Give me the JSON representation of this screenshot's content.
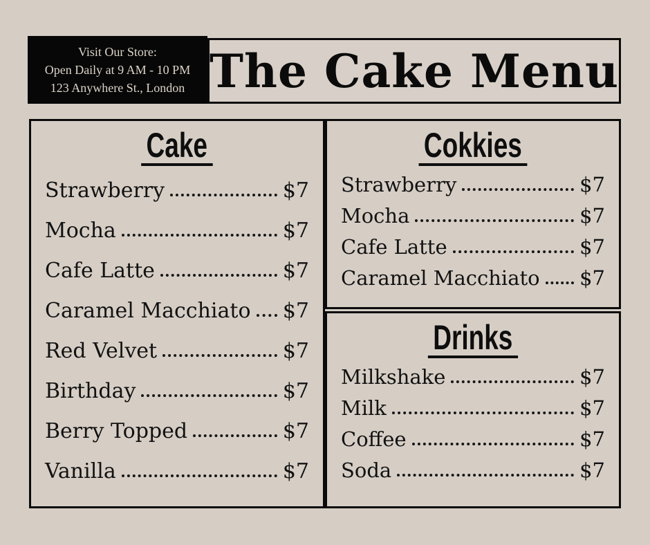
{
  "page": {
    "background": "#d6cec5",
    "ink": "#0b0b0b",
    "store_box_bg": "#070707",
    "store_text_color": "#ddd5c9"
  },
  "header": {
    "store_info": {
      "line1": "Visit Our Store:",
      "line2": "Open Daily at 9 AM - 10 PM",
      "line3": "123 Anywhere St., London"
    },
    "title": "The Cake Menu"
  },
  "sections": [
    {
      "title": "Cake",
      "items": [
        {
          "name": "Strawberry",
          "price": "$7"
        },
        {
          "name": "Mocha",
          "price": "$7"
        },
        {
          "name": "Cafe Latte",
          "price": "$7"
        },
        {
          "name": "Caramel Macchiato",
          "price": "$7"
        },
        {
          "name": "Red Velvet",
          "price": "$7"
        },
        {
          "name": "Birthday",
          "price": "$7"
        },
        {
          "name": "Berry Topped",
          "price": "$7"
        },
        {
          "name": "Vanilla",
          "price": "$7"
        }
      ]
    },
    {
      "title": "Cokkies",
      "items": [
        {
          "name": "Strawberry",
          "price": "$7"
        },
        {
          "name": "Mocha",
          "price": "$7"
        },
        {
          "name": "Cafe Latte",
          "price": "$7"
        },
        {
          "name": "Caramel Macchiato",
          "price": "$7"
        }
      ]
    },
    {
      "title": "Drinks",
      "items": [
        {
          "name": "Milkshake",
          "price": "$7"
        },
        {
          "name": "Milk",
          "price": "$7"
        },
        {
          "name": "Coffee",
          "price": "$7"
        },
        {
          "name": "Soda",
          "price": "$7"
        }
      ]
    }
  ]
}
